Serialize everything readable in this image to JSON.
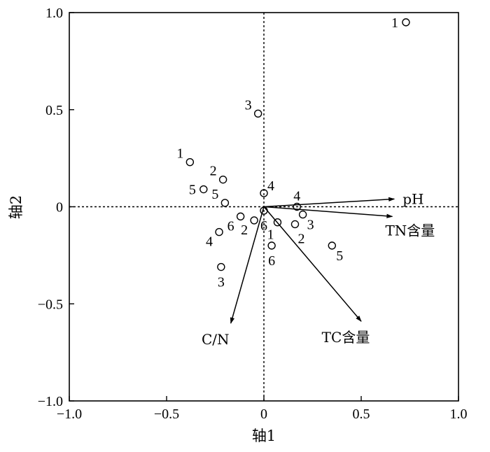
{
  "chart_data": {
    "type": "scatter",
    "xlabel": "轴1",
    "ylabel": "轴2",
    "xlim": [
      -1.0,
      1.0
    ],
    "ylim": [
      -1.0,
      1.0
    ],
    "grid": false,
    "zero_lines": true,
    "xticks": [
      {
        "value": -1.0,
        "label": "−1.0"
      },
      {
        "value": -0.5,
        "label": "−0.5"
      },
      {
        "value": 0.0,
        "label": "0"
      },
      {
        "value": 0.5,
        "label": "0.5"
      },
      {
        "value": 1.0,
        "label": "1.0"
      }
    ],
    "yticks": [
      {
        "value": -1.0,
        "label": "−1.0"
      },
      {
        "value": -0.5,
        "label": "−0.5"
      },
      {
        "value": 0.0,
        "label": "0"
      },
      {
        "value": 0.5,
        "label": "0.5"
      },
      {
        "value": 1.0,
        "label": "1.0"
      }
    ],
    "points": [
      {
        "x": 0.73,
        "y": 0.95,
        "label": "1",
        "label_pos": "left"
      },
      {
        "x": -0.03,
        "y": 0.48,
        "label": "3",
        "label_pos": "upper-left"
      },
      {
        "x": -0.38,
        "y": 0.23,
        "label": "1",
        "label_pos": "upper-left"
      },
      {
        "x": -0.21,
        "y": 0.14,
        "label": "2",
        "label_pos": "upper-left"
      },
      {
        "x": -0.31,
        "y": 0.09,
        "label": "5",
        "label_pos": "left"
      },
      {
        "x": -0.2,
        "y": 0.02,
        "label": "5",
        "label_pos": "upper-left"
      },
      {
        "x": 0.0,
        "y": 0.07,
        "label": "4",
        "label_pos": "upper-right"
      },
      {
        "x": 0.17,
        "y": 0.0,
        "label": "4",
        "label_pos": "above"
      },
      {
        "x": 0.2,
        "y": -0.04,
        "label": "3",
        "label_pos": "lower-right"
      },
      {
        "x": 0.16,
        "y": -0.09,
        "label": "2",
        "label_pos": "below-right"
      },
      {
        "x": 0.07,
        "y": -0.08,
        "label": "1",
        "label_pos": "below-left"
      },
      {
        "x": 0.0,
        "y": -0.02,
        "label": "6",
        "label_pos": "below"
      },
      {
        "x": -0.05,
        "y": -0.07,
        "label": "2",
        "label_pos": "lower-left"
      },
      {
        "x": -0.12,
        "y": -0.05,
        "label": "6",
        "label_pos": "lower-left"
      },
      {
        "x": -0.23,
        "y": -0.13,
        "label": "4",
        "label_pos": "lower-left"
      },
      {
        "x": 0.04,
        "y": -0.2,
        "label": "6",
        "label_pos": "below"
      },
      {
        "x": 0.35,
        "y": -0.2,
        "label": "5",
        "label_pos": "lower-right"
      },
      {
        "x": -0.22,
        "y": -0.31,
        "label": "3",
        "label_pos": "below"
      }
    ],
    "vectors": [
      {
        "name": "pH",
        "x": 0.67,
        "y": 0.04,
        "label_pos": "right"
      },
      {
        "name": "TN含量",
        "x": 0.66,
        "y": -0.05,
        "label_pos": "below-right"
      },
      {
        "name": "TC含量",
        "x": 0.5,
        "y": -0.59,
        "label_pos": "below"
      },
      {
        "name": "C/N",
        "x": -0.17,
        "y": -0.6,
        "label_pos": "below"
      }
    ]
  }
}
